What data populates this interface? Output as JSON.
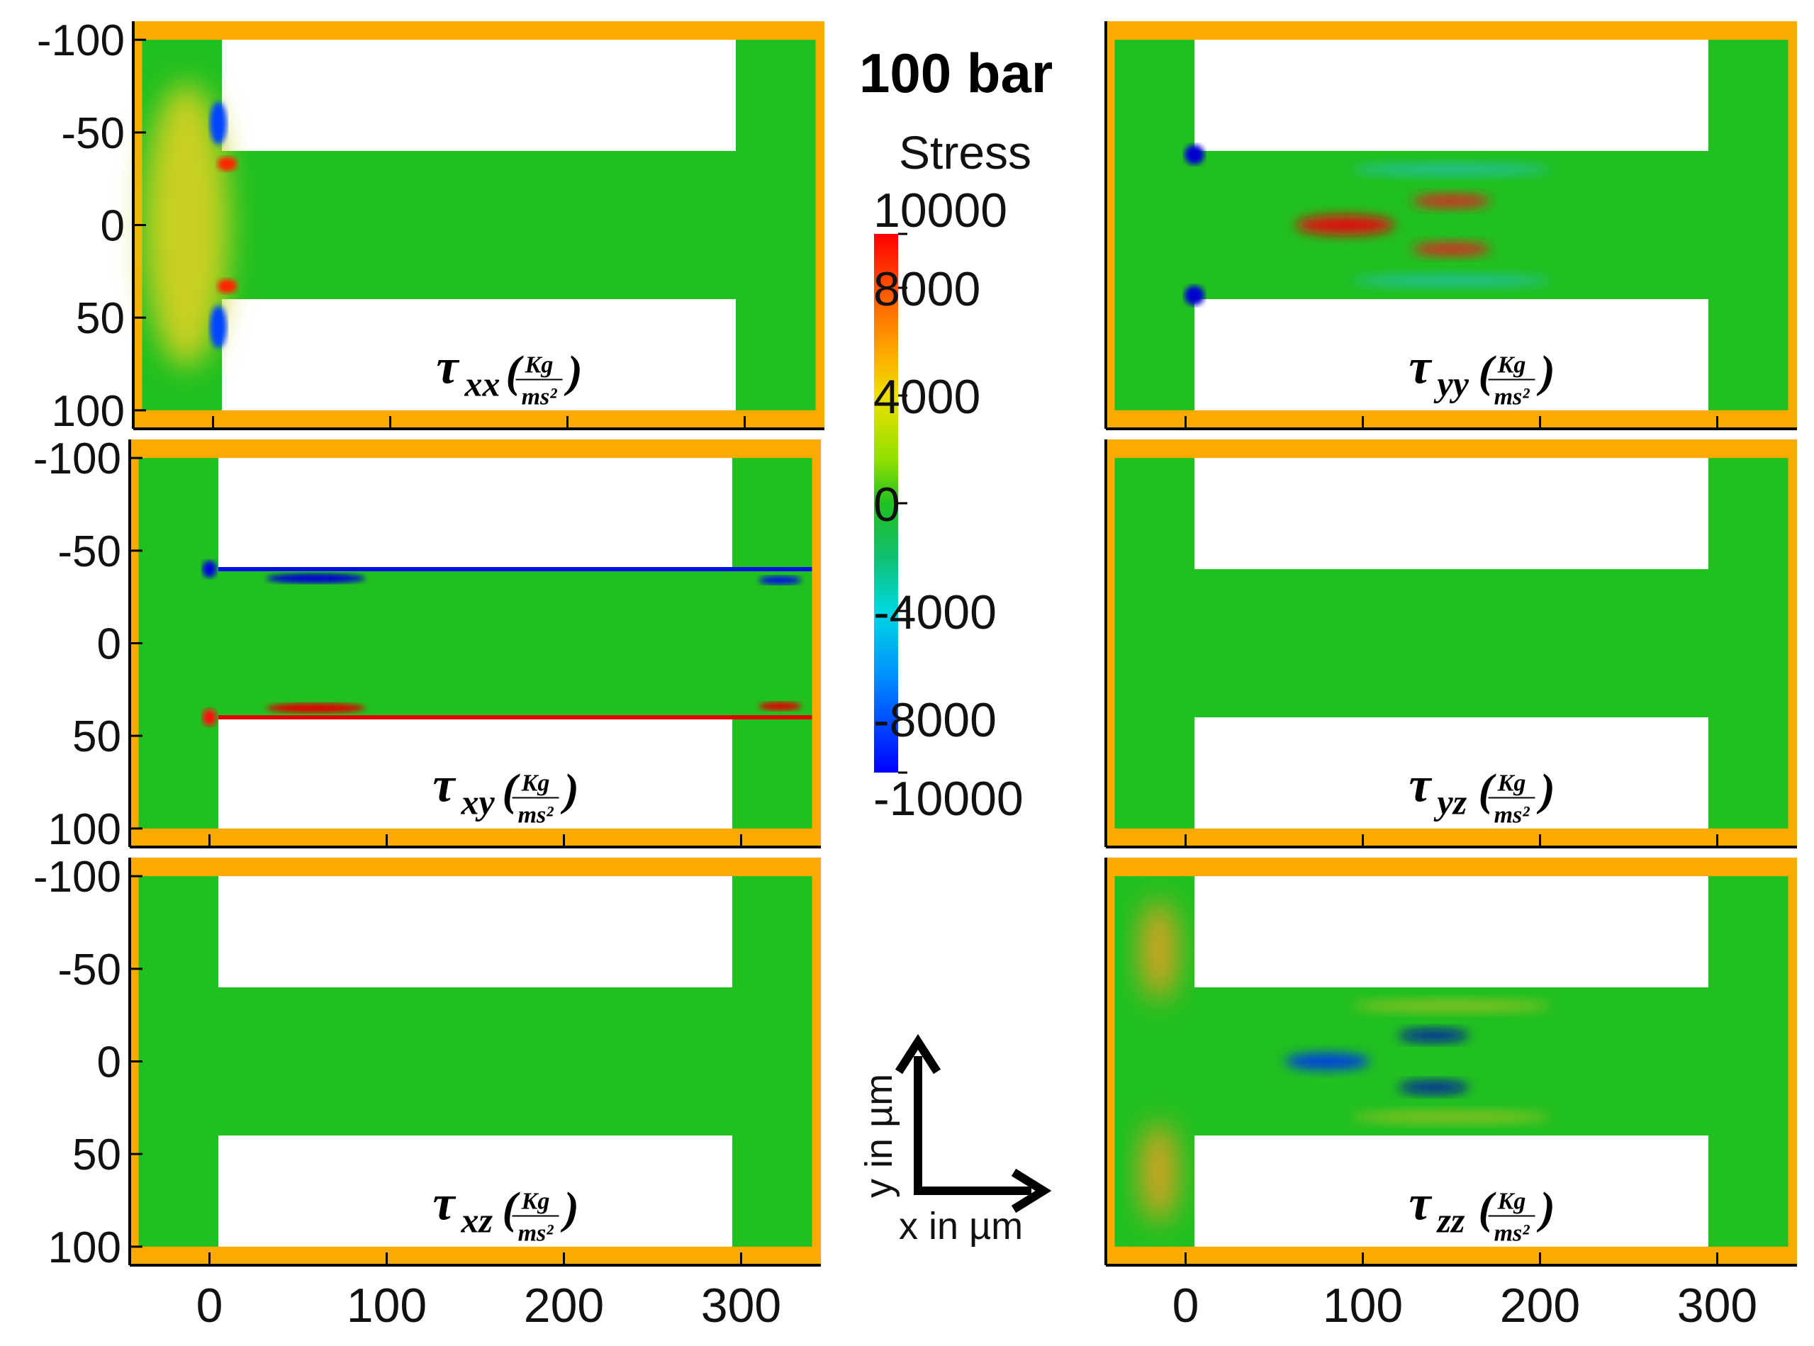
{
  "figure": {
    "pressure_label": "100 bar",
    "colorbar": {
      "title": "Stress",
      "ticks": [
        "10000",
        "8000",
        "4000",
        "0",
        "-4000",
        "-8000",
        "-10000"
      ],
      "range": [
        -10000,
        10000
      ],
      "colormap": [
        "#0000ff",
        "#00c8ff",
        "#1fc41f",
        "#20c000",
        "#f0f000",
        "#ff8c00",
        "#ff0000"
      ]
    },
    "axis_direction": {
      "y_label": "y in µm",
      "x_label": "x in µm"
    },
    "colors": {
      "wall": "#FFAA00",
      "fluid": "#20c020",
      "positive": "#e01010",
      "negative": "#1010d0",
      "solid": "#ffffff"
    }
  },
  "chart_data": [
    {
      "type": "heatmap",
      "id": "txx",
      "label_symbol": "τ",
      "label_sub": "xx",
      "unit_num": "Kg",
      "unit_den": "ms²",
      "xlim": [
        -45,
        345
      ],
      "ylim": [
        -110,
        110
      ],
      "y_ticks": [
        "-100",
        "-50",
        "0",
        "50",
        "100"
      ],
      "x_ticks": []
    },
    {
      "type": "heatmap",
      "id": "tyy",
      "label_symbol": "τ",
      "label_sub": "yy",
      "unit_num": "Kg",
      "unit_den": "ms²",
      "xlim": [
        -45,
        345
      ],
      "ylim": [
        -110,
        110
      ],
      "y_ticks": [],
      "x_ticks": []
    },
    {
      "type": "heatmap",
      "id": "txy",
      "label_symbol": "τ",
      "label_sub": "xy",
      "unit_num": "Kg",
      "unit_den": "ms²",
      "xlim": [
        -45,
        345
      ],
      "ylim": [
        -110,
        110
      ],
      "y_ticks": [
        "-100",
        "-50",
        "0",
        "50",
        "100"
      ],
      "x_ticks": []
    },
    {
      "type": "heatmap",
      "id": "tyz",
      "label_symbol": "τ",
      "label_sub": "yz",
      "unit_num": "Kg",
      "unit_den": "ms²",
      "xlim": [
        -45,
        345
      ],
      "ylim": [
        -110,
        110
      ],
      "y_ticks": [],
      "x_ticks": []
    },
    {
      "type": "heatmap",
      "id": "txz",
      "label_symbol": "τ",
      "label_sub": "xz",
      "unit_num": "Kg",
      "unit_den": "ms²",
      "xlim": [
        -45,
        345
      ],
      "ylim": [
        -110,
        110
      ],
      "y_ticks": [
        "-100",
        "-50",
        "0",
        "50",
        "100"
      ],
      "x_ticks": [
        "0",
        "100",
        "200",
        "300"
      ]
    },
    {
      "type": "heatmap",
      "id": "tzz",
      "label_symbol": "τ",
      "label_sub": "zz",
      "unit_num": "Kg",
      "unit_den": "ms²",
      "xlim": [
        -45,
        345
      ],
      "ylim": [
        -110,
        110
      ],
      "y_ticks": [],
      "x_ticks": [
        "0",
        "100",
        "200",
        "300"
      ]
    }
  ]
}
